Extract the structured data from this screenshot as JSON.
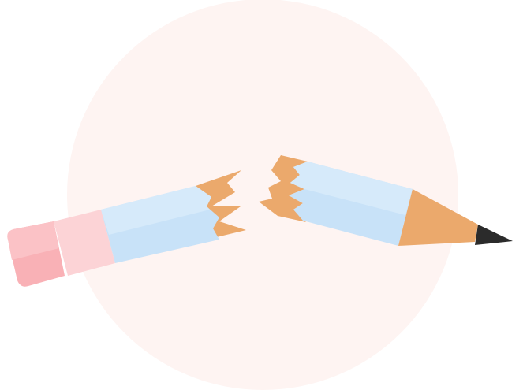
{
  "illustration": {
    "subject": "broken-pencil",
    "colors": {
      "backdrop": "#FEF4F2",
      "pencil_body": "#C8E2F8",
      "pencil_body_highlight": "#D6EAFA",
      "wood": "#EBA96C",
      "graphite": "#2B2B2B",
      "eraser_band": "#FCD3D6",
      "eraser": "#F9B1B6",
      "eraser_shadow": "#F4A6AB"
    }
  }
}
